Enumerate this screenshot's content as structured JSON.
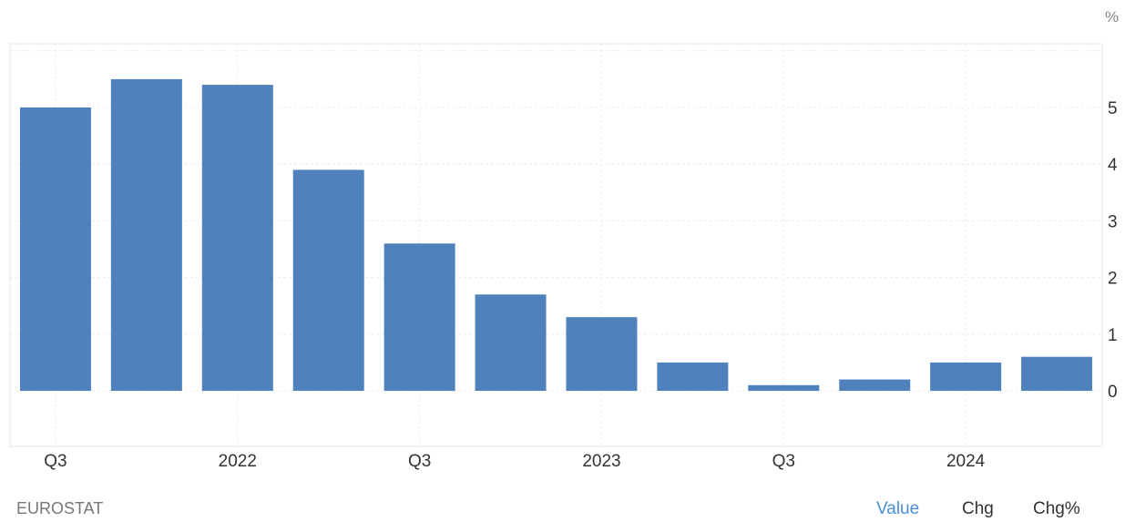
{
  "chart_data": {
    "type": "bar",
    "unit": "%",
    "categories": [
      "2021 Q3",
      "2021 Q4",
      "2022 Q1",
      "2022 Q2",
      "2022 Q3",
      "2022 Q4",
      "2023 Q1",
      "2023 Q2",
      "2023 Q3",
      "2023 Q4",
      "2024 Q1",
      "2024 Q2"
    ],
    "values": [
      5.0,
      5.5,
      5.4,
      3.9,
      2.6,
      1.7,
      1.3,
      0.5,
      0.1,
      0.2,
      0.5,
      0.6
    ],
    "x_tick_labels": [
      {
        "category": "2021 Q3",
        "label": "Q3"
      },
      {
        "category": "2022 Q1",
        "label": "2022"
      },
      {
        "category": "2022 Q3",
        "label": "Q3"
      },
      {
        "category": "2023 Q1",
        "label": "2023"
      },
      {
        "category": "2023 Q3",
        "label": "Q3"
      },
      {
        "category": "2024 Q1",
        "label": "2024"
      }
    ],
    "y_ticks": [
      0,
      1,
      2,
      3,
      4,
      5
    ],
    "ylim": [
      -1,
      6
    ],
    "grid": true,
    "y_axis_position": "right",
    "color": "#4f81bd"
  },
  "footer": {
    "source": "EUROSTAT",
    "tabs": {
      "value": "Value",
      "chg": "Chg",
      "chg_pct": "Chg%"
    },
    "active_color": "#4a90d9"
  }
}
